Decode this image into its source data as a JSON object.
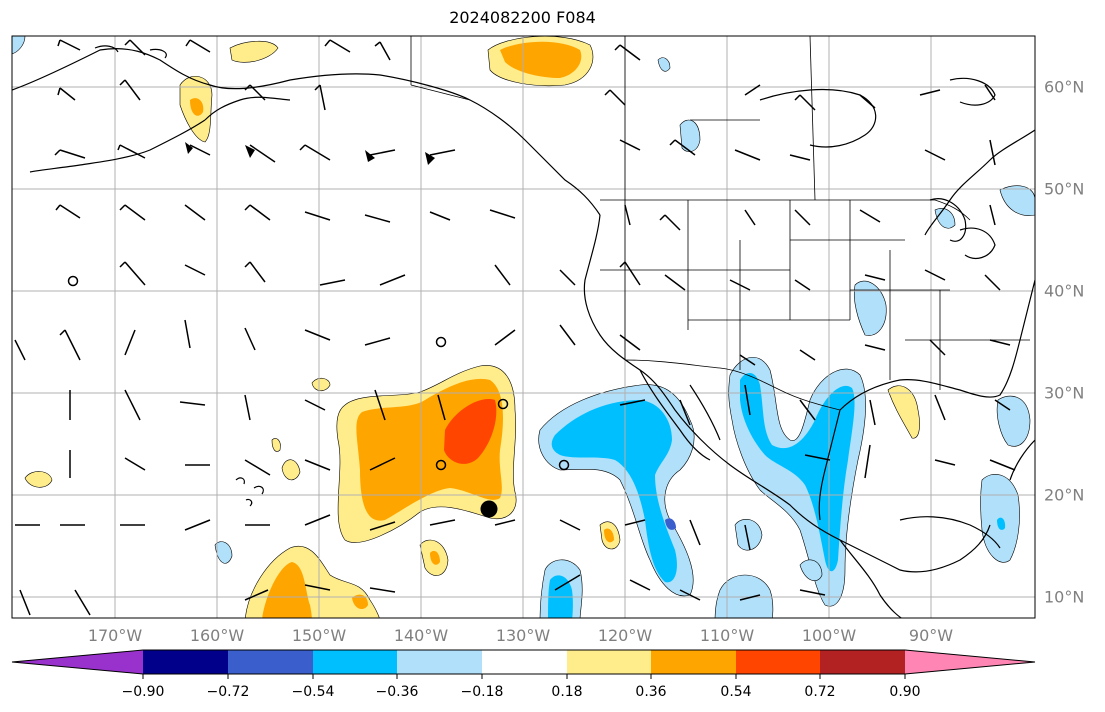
{
  "title": "2024082200 F084",
  "map": {
    "longitude_labels": [
      "170°W",
      "160°W",
      "150°W",
      "140°W",
      "130°W",
      "120°W",
      "110°W",
      "100°W",
      "90°W"
    ],
    "latitude_labels": [
      "60°N",
      "50°N",
      "40°N",
      "30°N",
      "20°N",
      "10°N"
    ],
    "field_colors": {
      "lt_-0.90": "#9932cc",
      "-0.90_-0.72": "#00008b",
      "-0.72_-0.54": "#3a5fcd",
      "-0.54_-0.36": "#00bfff",
      "-0.36_-0.18": "#b0e0fa",
      "-0.18_0.18": "#ffffff",
      "0.18_0.36": "#ffec8b",
      "0.36_0.54": "#ffa500",
      "0.54_0.72": "#ff4500",
      "0.72_0.90": "#b22222",
      "gt_0.90": "#ff85b4"
    },
    "markers": [
      "filled-circle",
      "open-circle"
    ]
  },
  "colorbar": {
    "ticks": [
      "−0.90",
      "−0.72",
      "−0.54",
      "−0.36",
      "−0.18",
      "0.18",
      "0.36",
      "0.54",
      "0.72",
      "0.90"
    ],
    "colors": [
      "#9932cc",
      "#00008b",
      "#3a5fcd",
      "#00bfff",
      "#b0e0fa",
      "#ffffff",
      "#ffec8b",
      "#ffa500",
      "#ff4500",
      "#b22222",
      "#ff85b4"
    ]
  }
}
